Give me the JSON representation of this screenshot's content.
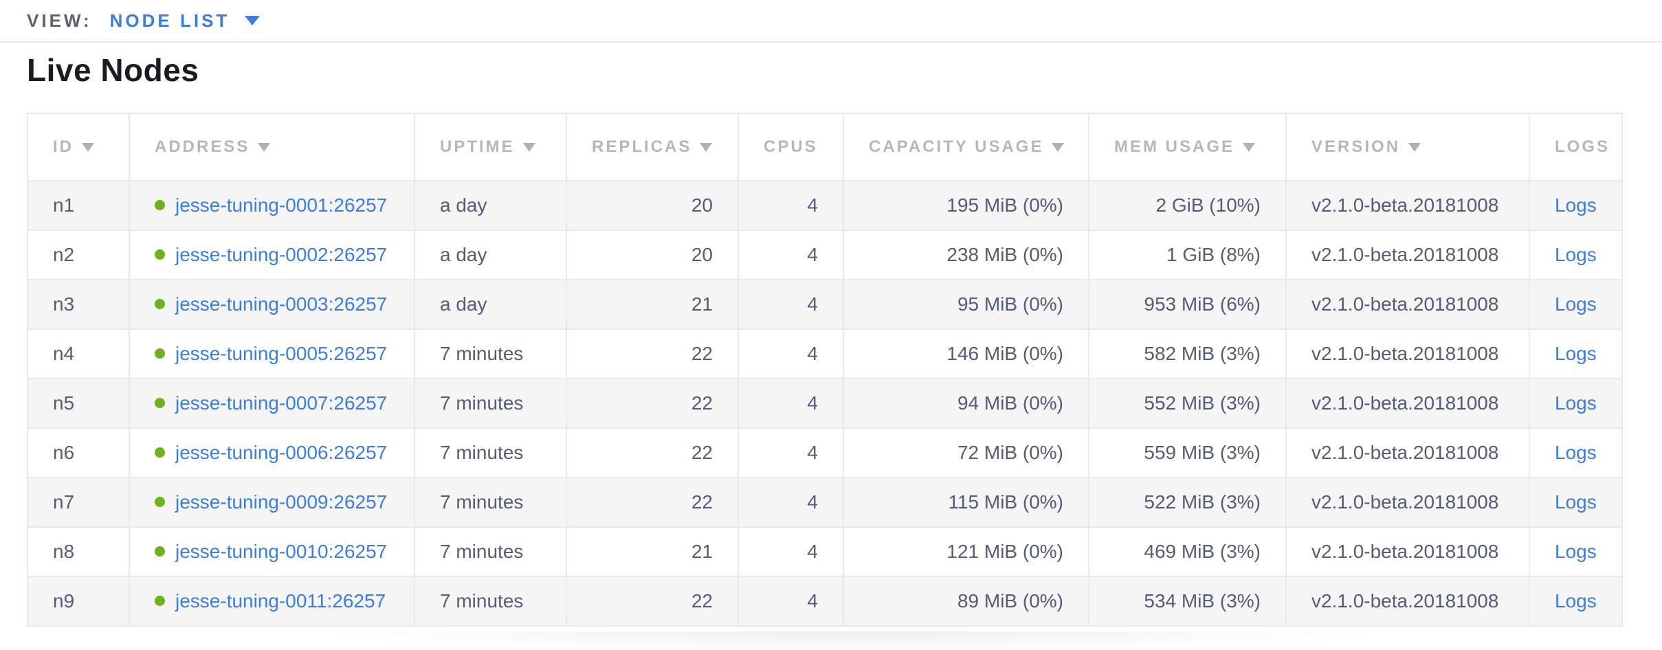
{
  "view_bar": {
    "label": "VIEW:",
    "selected": "NODE LIST"
  },
  "page": {
    "title": "Live Nodes"
  },
  "colors": {
    "accent_blue": "#3c7de2",
    "live_green": "#6cb31c",
    "cell_text": "#545d75",
    "header_text": "#b4b7bd",
    "row_stripe": "#f5f5f6"
  },
  "table": {
    "columns": [
      {
        "key": "id",
        "label": "ID",
        "sortable": true,
        "align": "left"
      },
      {
        "key": "address",
        "label": "ADDRESS",
        "sortable": true,
        "align": "left"
      },
      {
        "key": "uptime",
        "label": "UPTIME",
        "sortable": true,
        "align": "left"
      },
      {
        "key": "replicas",
        "label": "REPLICAS",
        "sortable": true,
        "align": "right"
      },
      {
        "key": "cpus",
        "label": "CPUS",
        "sortable": false,
        "align": "right"
      },
      {
        "key": "capacity",
        "label": "CAPACITY USAGE",
        "sortable": true,
        "align": "right"
      },
      {
        "key": "mem",
        "label": "MEM USAGE",
        "sortable": true,
        "align": "right"
      },
      {
        "key": "version",
        "label": "VERSION",
        "sortable": true,
        "align": "left"
      },
      {
        "key": "logs",
        "label": "LOGS",
        "sortable": false,
        "align": "left"
      }
    ],
    "rows": [
      {
        "id": "n1",
        "status": "live",
        "address": "jesse-tuning-0001:26257",
        "uptime": "a day",
        "replicas": "20",
        "cpus": "4",
        "capacity": "195 MiB (0%)",
        "mem": "2 GiB (10%)",
        "version": "v2.1.0-beta.20181008",
        "logs": "Logs"
      },
      {
        "id": "n2",
        "status": "live",
        "address": "jesse-tuning-0002:26257",
        "uptime": "a day",
        "replicas": "20",
        "cpus": "4",
        "capacity": "238 MiB (0%)",
        "mem": "1 GiB (8%)",
        "version": "v2.1.0-beta.20181008",
        "logs": "Logs"
      },
      {
        "id": "n3",
        "status": "live",
        "address": "jesse-tuning-0003:26257",
        "uptime": "a day",
        "replicas": "21",
        "cpus": "4",
        "capacity": "95 MiB (0%)",
        "mem": "953 MiB (6%)",
        "version": "v2.1.0-beta.20181008",
        "logs": "Logs"
      },
      {
        "id": "n4",
        "status": "live",
        "address": "jesse-tuning-0005:26257",
        "uptime": "7 minutes",
        "replicas": "22",
        "cpus": "4",
        "capacity": "146 MiB (0%)",
        "mem": "582 MiB (3%)",
        "version": "v2.1.0-beta.20181008",
        "logs": "Logs"
      },
      {
        "id": "n5",
        "status": "live",
        "address": "jesse-tuning-0007:26257",
        "uptime": "7 minutes",
        "replicas": "22",
        "cpus": "4",
        "capacity": "94 MiB (0%)",
        "mem": "552 MiB (3%)",
        "version": "v2.1.0-beta.20181008",
        "logs": "Logs"
      },
      {
        "id": "n6",
        "status": "live",
        "address": "jesse-tuning-0006:26257",
        "uptime": "7 minutes",
        "replicas": "22",
        "cpus": "4",
        "capacity": "72 MiB (0%)",
        "mem": "559 MiB (3%)",
        "version": "v2.1.0-beta.20181008",
        "logs": "Logs"
      },
      {
        "id": "n7",
        "status": "live",
        "address": "jesse-tuning-0009:26257",
        "uptime": "7 minutes",
        "replicas": "22",
        "cpus": "4",
        "capacity": "115 MiB (0%)",
        "mem": "522 MiB (3%)",
        "version": "v2.1.0-beta.20181008",
        "logs": "Logs"
      },
      {
        "id": "n8",
        "status": "live",
        "address": "jesse-tuning-0010:26257",
        "uptime": "7 minutes",
        "replicas": "21",
        "cpus": "4",
        "capacity": "121 MiB (0%)",
        "mem": "469 MiB (3%)",
        "version": "v2.1.0-beta.20181008",
        "logs": "Logs"
      },
      {
        "id": "n9",
        "status": "live",
        "address": "jesse-tuning-0011:26257",
        "uptime": "7 minutes",
        "replicas": "22",
        "cpus": "4",
        "capacity": "89 MiB (0%)",
        "mem": "534 MiB (3%)",
        "version": "v2.1.0-beta.20181008",
        "logs": "Logs"
      }
    ]
  }
}
